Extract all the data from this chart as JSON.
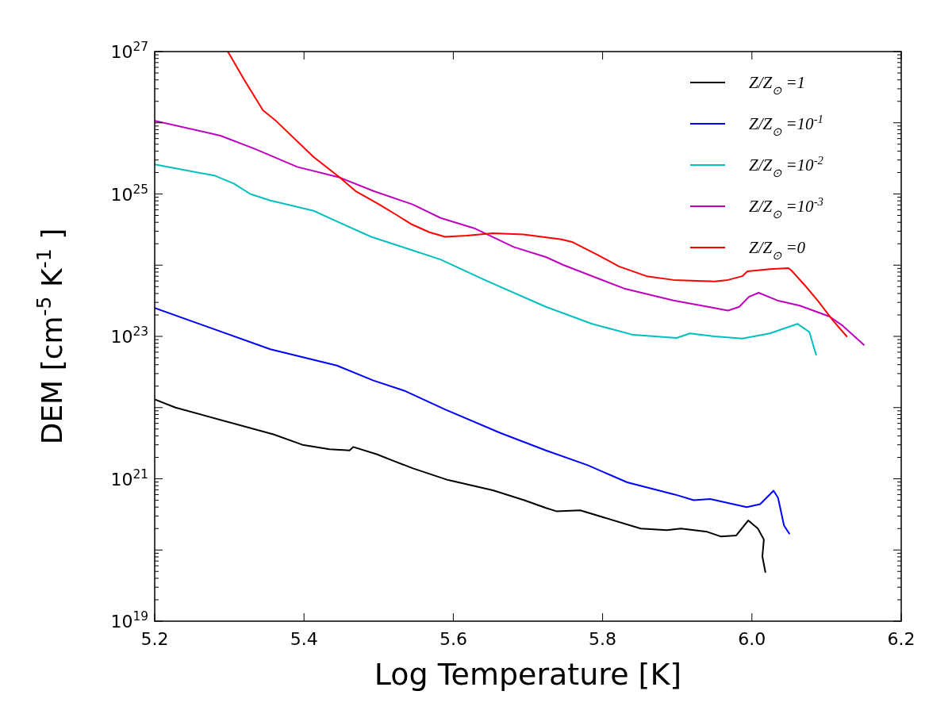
{
  "chart_data": {
    "type": "line",
    "xlabel": "Log Temperature [K]",
    "ylabel": "DEM [cm$^{-5}$ K$^{-1}$]",
    "log": "y",
    "grid": false,
    "legend": "top right",
    "xlim": [
      5.2,
      6.2
    ],
    "xticks": [
      5.2,
      5.4,
      5.6,
      5.8,
      {
        "value": 6,
        "label": "6.0"
      },
      6.2
    ],
    "ylim": [
      1e+19,
      1e+27
    ],
    "yticks": [
      {
        "value": 1e+19,
        "label": "10$^{19}$"
      },
      {
        "value": 1e+20,
        "label": null
      },
      {
        "value": 1e+21,
        "label": "10$^{21}$"
      },
      {
        "value": 1e+22,
        "label": null
      },
      {
        "value": 1e+23,
        "label": "10$^{23}$"
      },
      {
        "value": 1e+24,
        "label": null
      },
      {
        "value": 1e+25,
        "label": "10$^{25}$"
      },
      {
        "value": 1e+26,
        "label": null
      },
      {
        "value": 1e+27,
        "label": "10$^{27}$"
      }
    ],
    "series": [
      {
        "name": "Z/Z$_{⊙}$=1",
        "color": "#000000",
        "x": [
          5.2,
          5.228,
          5.359,
          5.398,
          5.434,
          5.461,
          5.466,
          5.498,
          5.519,
          5.546,
          5.593,
          5.653,
          5.695,
          5.724,
          5.738,
          5.77,
          5.851,
          5.886,
          5.905,
          5.94,
          5.958,
          5.979,
          5.995,
          6.008,
          6.016,
          6.014,
          6.018
        ],
        "values": [
          1.3e+22,
          1e+22,
          4.2e+21,
          3e+21,
          2.6e+21,
          2.5e+21,
          2.8e+21,
          2.2e+21,
          1.8e+21,
          1.4e+21,
          9.6e+20,
          6.9e+20,
          5e+20,
          3.9e+20,
          3.5e+20,
          3.6e+20,
          2e+20,
          1.9e+20,
          2e+20,
          1.8e+20,
          1.55e+20,
          1.6e+20,
          2.6e+20,
          2e+20,
          1.4e+20,
          8.1e+19,
          4.9e+19
        ]
      },
      {
        "name": "Z/Z$_{⊙}$=10$^{-1}$",
        "color": "#0000ff",
        "x": [
          5.2,
          5.355,
          5.444,
          5.493,
          5.536,
          5.589,
          5.663,
          5.724,
          5.78,
          5.833,
          5.897,
          5.922,
          5.944,
          5.993,
          6.011,
          6.029,
          6.035,
          6.043,
          6.05
        ],
        "values": [
          2.5e+23,
          6.6e+22,
          3.9e+22,
          2.4e+22,
          1.7e+22,
          9.4e+21,
          4.4e+21,
          2.5e+21,
          1.55e+21,
          8.9e+20,
          6e+20,
          5e+20,
          5.2e+20,
          4e+20,
          4.4e+20,
          6.8e+20,
          5.4e+20,
          2.2e+20,
          1.7e+20
        ]
      },
      {
        "name": "Z/Z$_{⊙}$=10$^{-2}$",
        "color": "#00bfbf",
        "x": [
          5.2,
          5.281,
          5.306,
          5.328,
          5.355,
          5.413,
          5.44,
          5.49,
          5.525,
          5.583,
          5.642,
          5.724,
          5.786,
          5.841,
          5.899,
          5.917,
          5.95,
          5.987,
          6.024,
          6.061,
          6.077,
          6.082,
          6.086
        ],
        "values": [
          2.6e+25,
          1.8e+25,
          1.4e+25,
          1e+25,
          8.1e+24,
          5.8e+24,
          4.3e+24,
          2.5e+24,
          1.9e+24,
          1.2e+24,
          6.2e+23,
          2.6e+23,
          1.5e+23,
          1.05e+23,
          9.5e+22,
          1.1e+23,
          1e+23,
          9.3e+22,
          1.1e+23,
          1.5e+23,
          1.15e+23,
          7.6e+22,
          5.5e+22
        ]
      },
      {
        "name": "Z/Z$_{⊙}$=10$^{-3}$",
        "color": "#bf00bf",
        "x": [
          5.2,
          5.288,
          5.334,
          5.391,
          5.448,
          5.493,
          5.546,
          5.583,
          5.628,
          5.681,
          5.724,
          5.748,
          5.829,
          5.895,
          5.95,
          5.968,
          5.983,
          5.996,
          6.009,
          6.034,
          6.064,
          6.104,
          6.122,
          6.15
        ],
        "values": [
          1.07e+26,
          6.6e+25,
          4.3e+25,
          2.4e+25,
          1.7e+25,
          1.1e+25,
          7.1e+24,
          4.6e+24,
          3.3e+24,
          1.8e+24,
          1.3e+24,
          1e+24,
          4.7e+23,
          3.2e+23,
          2.5e+23,
          2.3e+23,
          2.6e+23,
          3.6e+23,
          4.1e+23,
          3.2e+23,
          2.7e+23,
          1.9e+23,
          1.4e+23,
          7.6e+22
        ]
      },
      {
        "name": "Z/Z$_{⊙}$=0",
        "color": "#ff0000",
        "x": [
          5.298,
          5.32,
          5.345,
          5.363,
          5.413,
          5.448,
          5.469,
          5.501,
          5.525,
          5.543,
          5.568,
          5.589,
          5.618,
          5.653,
          5.694,
          5.745,
          5.76,
          5.793,
          5.822,
          5.859,
          5.895,
          5.95,
          5.968,
          5.987,
          5.994,
          6.024,
          6.049,
          6.053,
          6.071,
          6.089,
          6.108,
          6.127
        ],
        "values": [
          1e+27,
          4e+26,
          1.5e+26,
          1.05e+26,
          3.3e+25,
          1.7e+25,
          1.1e+25,
          7.1e+24,
          5e+24,
          3.8e+24,
          2.9e+24,
          2.5e+24,
          2.6e+24,
          2.8e+24,
          2.7e+24,
          2.3e+24,
          2.1e+24,
          1.4e+24,
          9.6e+23,
          7e+23,
          6.2e+23,
          5.9e+23,
          6.2e+23,
          7e+23,
          8.2e+23,
          8.8e+23,
          9.1e+23,
          8.4e+23,
          5.2e+23,
          3.1e+23,
          1.7e+23,
          1e+23
        ]
      }
    ]
  }
}
